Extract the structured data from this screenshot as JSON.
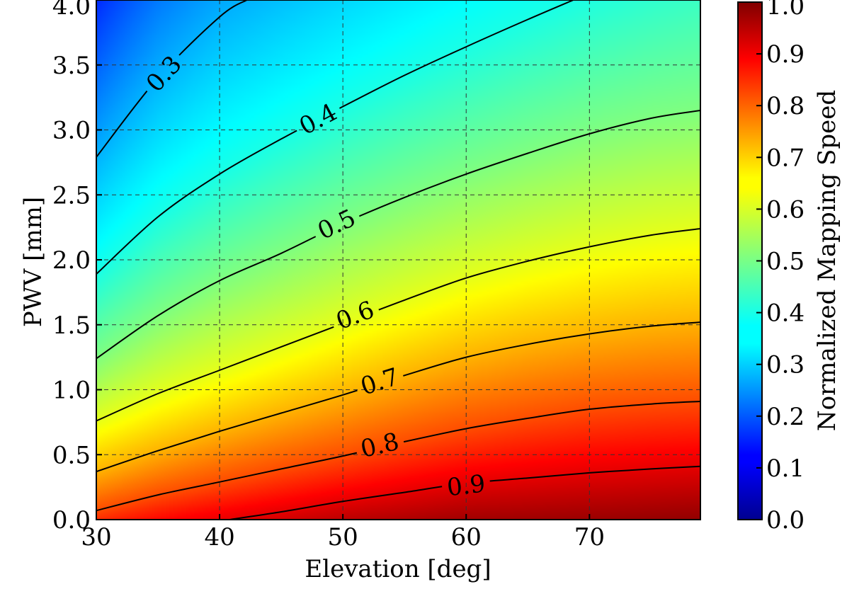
{
  "chart_data": {
    "type": "heatmap",
    "title": "",
    "xlabel": "Elevation [deg]",
    "ylabel": "PWV [mm]",
    "xlim": [
      30,
      79
    ],
    "ylim": [
      0.0,
      4.0
    ],
    "xticks": [
      "30",
      "40",
      "50",
      "60",
      "70"
    ],
    "yticks": [
      "0.0",
      "0.5",
      "1.0",
      "1.5",
      "2.0",
      "2.5",
      "3.0",
      "3.5",
      "4.0"
    ],
    "grid": true,
    "colormap": "jet",
    "colorbar": {
      "label": "Normalized Mapping Speed",
      "range": [
        0.0,
        1.0
      ],
      "ticks": [
        "0.0",
        "0.1",
        "0.2",
        "0.3",
        "0.4",
        "0.5",
        "0.6",
        "0.7",
        "0.8",
        "0.9",
        "1.0"
      ]
    },
    "contours": [
      {
        "level": 0.3,
        "label": "0.3",
        "label_at": [
          35.5,
          3.43
        ],
        "points": [
          [
            30,
            2.79
          ],
          [
            35,
            3.4
          ],
          [
            40,
            3.87
          ],
          [
            42.2,
            4.0
          ]
        ]
      },
      {
        "level": 0.4,
        "label": "0.4",
        "label_at": [
          48.0,
          3.08
        ],
        "points": [
          [
            30,
            1.89
          ],
          [
            35,
            2.33
          ],
          [
            40,
            2.66
          ],
          [
            45,
            2.93
          ],
          [
            50,
            3.18
          ],
          [
            55,
            3.42
          ],
          [
            60,
            3.64
          ],
          [
            65,
            3.85
          ],
          [
            68.7,
            4.0
          ]
        ]
      },
      {
        "level": 0.5,
        "label": "0.5",
        "label_at": [
          49.5,
          2.27
        ],
        "points": [
          [
            30,
            1.24
          ],
          [
            35,
            1.57
          ],
          [
            40,
            1.84
          ],
          [
            45,
            2.05
          ],
          [
            50,
            2.28
          ],
          [
            55,
            2.48
          ],
          [
            60,
            2.66
          ],
          [
            65,
            2.82
          ],
          [
            70,
            2.97
          ],
          [
            75,
            3.09
          ],
          [
            79,
            3.15
          ]
        ]
      },
      {
        "level": 0.6,
        "label": "0.6",
        "label_at": [
          51.0,
          1.57
        ],
        "points": [
          [
            30,
            0.76
          ],
          [
            35,
            0.97
          ],
          [
            40,
            1.15
          ],
          [
            45,
            1.33
          ],
          [
            50,
            1.51
          ],
          [
            55,
            1.69
          ],
          [
            60,
            1.86
          ],
          [
            65,
            1.99
          ],
          [
            70,
            2.1
          ],
          [
            75,
            2.19
          ],
          [
            79,
            2.24
          ]
        ]
      },
      {
        "level": 0.7,
        "label": "0.7",
        "label_at": [
          53.0,
          1.06
        ],
        "points": [
          [
            30,
            0.37
          ],
          [
            35,
            0.53
          ],
          [
            40,
            0.68
          ],
          [
            45,
            0.82
          ],
          [
            50,
            0.96
          ],
          [
            55,
            1.11
          ],
          [
            60,
            1.25
          ],
          [
            65,
            1.35
          ],
          [
            70,
            1.43
          ],
          [
            75,
            1.49
          ],
          [
            79,
            1.52
          ]
        ]
      },
      {
        "level": 0.8,
        "label": "0.8",
        "label_at": [
          53.0,
          0.57
        ],
        "points": [
          [
            30,
            0.07
          ],
          [
            35,
            0.19
          ],
          [
            40,
            0.29
          ],
          [
            45,
            0.39
          ],
          [
            50,
            0.49
          ],
          [
            55,
            0.6
          ],
          [
            60,
            0.7
          ],
          [
            65,
            0.78
          ],
          [
            70,
            0.85
          ],
          [
            75,
            0.89
          ],
          [
            79,
            0.91
          ]
        ]
      },
      {
        "level": 0.9,
        "label": "0.9",
        "label_at": [
          60.0,
          0.26
        ],
        "points": [
          [
            40.8,
            0.0
          ],
          [
            45,
            0.06
          ],
          [
            50,
            0.14
          ],
          [
            55,
            0.21
          ],
          [
            60,
            0.28
          ],
          [
            65,
            0.32
          ],
          [
            70,
            0.36
          ],
          [
            75,
            0.39
          ],
          [
            79,
            0.41
          ]
        ]
      }
    ]
  }
}
